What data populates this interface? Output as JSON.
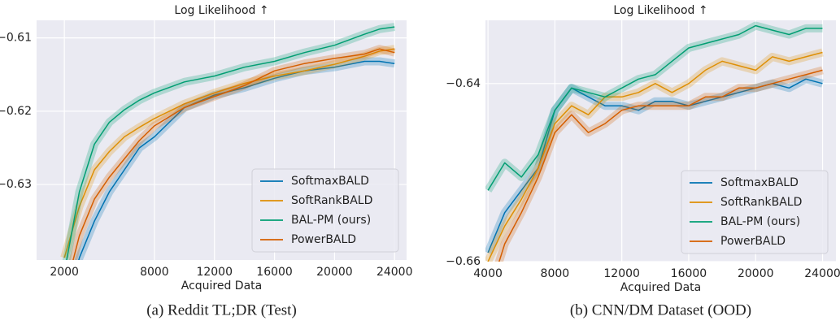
{
  "chart_data": [
    {
      "type": "line",
      "title": "Log Likelihood ↑",
      "xlabel": "Acquired Data",
      "caption": "(a) Reddit TL;DR (Test)",
      "x": [
        2000,
        3000,
        4000,
        5000,
        6000,
        7000,
        8000,
        10000,
        12000,
        14000,
        16000,
        18000,
        20000,
        22000,
        23000,
        24000
      ],
      "series": [
        {
          "name": "SoftmaxBALD",
          "color": "#0173b2",
          "values": [
            -0.648,
            -0.64,
            -0.635,
            -0.631,
            -0.628,
            -0.625,
            -0.6235,
            -0.6195,
            -0.6178,
            -0.6168,
            -0.6155,
            -0.6145,
            -0.614,
            -0.6132,
            -0.6132,
            -0.6135
          ]
        },
        {
          "name": "SoftRankBALD",
          "color": "#de8f05",
          "values": [
            -0.64,
            -0.633,
            -0.628,
            -0.6255,
            -0.6235,
            -0.6222,
            -0.621,
            -0.619,
            -0.6175,
            -0.6162,
            -0.6152,
            -0.6145,
            -0.6136,
            -0.6125,
            -0.6118,
            -0.6115
          ]
        },
        {
          "name": "BAL-PM (ours)",
          "color": "#029e73",
          "values": [
            -0.642,
            -0.631,
            -0.6245,
            -0.6215,
            -0.6198,
            -0.6185,
            -0.6175,
            -0.616,
            -0.6152,
            -0.614,
            -0.6132,
            -0.612,
            -0.611,
            -0.6095,
            -0.6088,
            -0.6085
          ]
        },
        {
          "name": "PowerBALD",
          "color": "#d55e00",
          "values": [
            -0.645,
            -0.637,
            -0.632,
            -0.629,
            -0.6265,
            -0.624,
            -0.622,
            -0.6195,
            -0.618,
            -0.6165,
            -0.6145,
            -0.6135,
            -0.6128,
            -0.6122,
            -0.6115,
            -0.612
          ]
        }
      ],
      "xlim": [
        150,
        24800
      ],
      "ylim": [
        -0.6403,
        -0.6076
      ],
      "xticks": [
        2000,
        8000,
        12000,
        16000,
        20000,
        24000
      ],
      "yticks": [
        {
          "value": -0.61,
          "label": "−0.61"
        },
        {
          "value": -0.62,
          "label": "−0.62"
        },
        {
          "value": -0.63,
          "label": "−0.63"
        }
      ],
      "grid": true,
      "legend": "lower right"
    },
    {
      "type": "line",
      "title": "Log Likelihood ↑",
      "xlabel": "Acquired Data",
      "caption": "(b) CNN/DM Dataset (OOD)",
      "x": [
        4000,
        5000,
        6000,
        7000,
        8000,
        9000,
        10000,
        11000,
        12000,
        13000,
        14000,
        15000,
        16000,
        17000,
        18000,
        19000,
        20000,
        21000,
        22000,
        23000,
        24000
      ],
      "series": [
        {
          "name": "SoftmaxBALD",
          "color": "#0173b2",
          "values": [
            -0.659,
            -0.6545,
            -0.652,
            -0.6495,
            -0.643,
            -0.6405,
            -0.6415,
            -0.6425,
            -0.6425,
            -0.643,
            -0.642,
            -0.642,
            -0.6425,
            -0.642,
            -0.6415,
            -0.641,
            -0.6405,
            -0.64,
            -0.6405,
            -0.6395,
            -0.64
          ]
        },
        {
          "name": "SoftRankBALD",
          "color": "#de8f05",
          "values": [
            -0.66,
            -0.656,
            -0.653,
            -0.6495,
            -0.6445,
            -0.6425,
            -0.6435,
            -0.6415,
            -0.6415,
            -0.641,
            -0.64,
            -0.641,
            -0.64,
            -0.6385,
            -0.6375,
            -0.638,
            -0.6385,
            -0.637,
            -0.6375,
            -0.637,
            -0.6365
          ]
        },
        {
          "name": "BAL-PM (ours)",
          "color": "#029e73",
          "values": [
            -0.652,
            -0.6489,
            -0.6505,
            -0.648,
            -0.643,
            -0.6405,
            -0.641,
            -0.6415,
            -0.6405,
            -0.6395,
            -0.639,
            -0.6375,
            -0.636,
            -0.6355,
            -0.635,
            -0.6345,
            -0.6335,
            -0.634,
            -0.6345,
            -0.6338,
            -0.6338
          ]
        },
        {
          "name": "PowerBALD",
          "color": "#d55e00",
          "values": [
            -0.664,
            -0.658,
            -0.6545,
            -0.6505,
            -0.6455,
            -0.6435,
            -0.6455,
            -0.6445,
            -0.643,
            -0.6425,
            -0.6425,
            -0.6425,
            -0.6425,
            -0.6415,
            -0.6415,
            -0.6405,
            -0.6405,
            -0.64,
            -0.6395,
            -0.639,
            -0.6385
          ]
        }
      ],
      "xlim": [
        3850,
        24800
      ],
      "ylim": [
        -0.66,
        -0.6329
      ],
      "xticks": [
        4000,
        8000,
        12000,
        16000,
        20000,
        24000
      ],
      "yticks": [
        {
          "value": -0.64,
          "label": "−0.64"
        },
        {
          "value": -0.66,
          "label": "−0.66"
        }
      ],
      "grid": true,
      "legend": "lower right"
    }
  ]
}
